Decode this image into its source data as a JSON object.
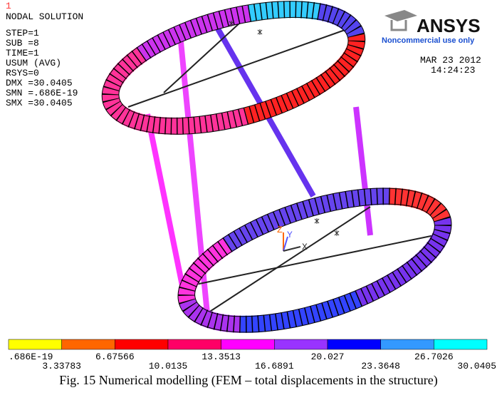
{
  "window": {
    "plot_number": "1",
    "title": "NODAL SOLUTION",
    "info": [
      "STEP=1",
      "SUB =8",
      "TIME=1",
      "USUM      (AVG)",
      "RSYS=0",
      "DMX =30.0405",
      "SMN =.686E-19",
      "SMX =30.0405"
    ]
  },
  "logo": {
    "name": "ANSYS",
    "note": "Noncommercial use only"
  },
  "date": "MAR 23 2012",
  "time": "14:24:23",
  "axes": {
    "z": "Z",
    "y": "Y",
    "x": "X"
  },
  "legend": {
    "colors": [
      "#ffff00",
      "#ff6600",
      "#ff0000",
      "#ff0066",
      "#ff00ff",
      "#9933ff",
      "#0000ff",
      "#3399ff",
      "#00ffff"
    ],
    "labels": [
      ".686E-19",
      "3.33783",
      "6.67566",
      "10.0135",
      "13.3513",
      "16.6891",
      "20.027",
      "23.3648",
      "26.7026",
      "30.0405"
    ]
  },
  "caption": "Fig. 15 Numerical modelling (FEM – total displacements in the structure)"
}
